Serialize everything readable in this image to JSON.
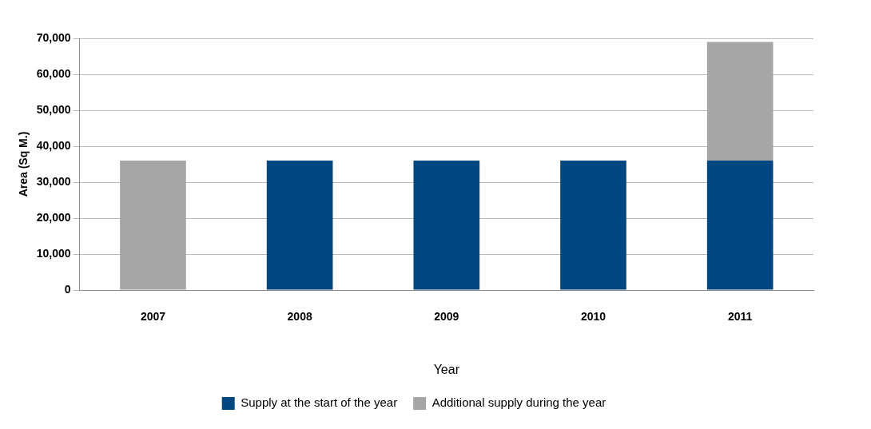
{
  "chart_data": {
    "type": "bar",
    "stacked": true,
    "xlabel": "Year",
    "ylabel": "Area (Sq M.)",
    "categories": [
      "2007",
      "2008",
      "2009",
      "2010",
      "2011"
    ],
    "series": [
      {
        "name": "Supply at the start of the year",
        "color": "#004680",
        "values": [
          null,
          36000,
          36000,
          36000,
          36000
        ]
      },
      {
        "name": "Additional supply during the year",
        "color": "#a6a6a6",
        "values": [
          36000,
          null,
          null,
          null,
          33000
        ]
      }
    ],
    "ylim": [
      0,
      70000
    ],
    "yticks": [
      {
        "value": 0,
        "label": "0"
      },
      {
        "value": 10000,
        "label": "10,000"
      },
      {
        "value": 20000,
        "label": "20,000"
      },
      {
        "value": 30000,
        "label": "30,000"
      },
      {
        "value": 40000,
        "label": "40,000"
      },
      {
        "value": 50000,
        "label": "50,000"
      },
      {
        "value": 60000,
        "label": "60,000"
      },
      {
        "value": 70000,
        "label": "70,000"
      }
    ],
    "grid": "y",
    "legend": "bottom"
  }
}
